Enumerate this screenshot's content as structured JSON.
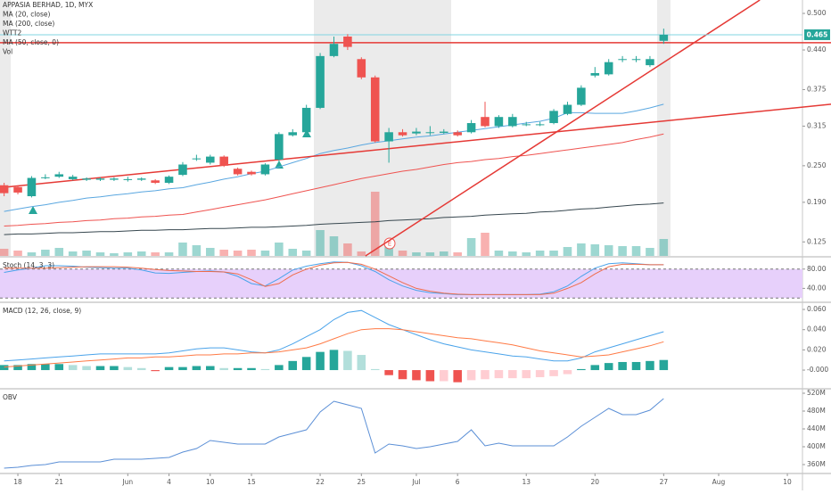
{
  "chart_data": [
    {
      "type": "candlestick",
      "title": "APPASIA BERHAD, 1D, MYX",
      "indicator_label": "WTT2",
      "event_label": "E",
      "xlim": [
        -0.3,
        58.1
      ],
      "ylim": [
        0.102,
        0.522
      ],
      "yticks": [
        {
          "value": 0.5,
          "label": "0.500"
        },
        {
          "value": 0.44,
          "label": "0.440"
        },
        {
          "value": 0.375,
          "label": "0.375"
        },
        {
          "value": 0.315,
          "label": "0.315"
        },
        {
          "value": 0.25,
          "label": "0.250"
        },
        {
          "value": 0.19,
          "label": "0.190"
        },
        {
          "value": 0.125,
          "label": "0.125"
        }
      ],
      "up_color": "#26a69a",
      "down_color": "#ef5350",
      "open": [
        0.218,
        0.215,
        0.2,
        0.23,
        0.232,
        0.228,
        0.227,
        0.227,
        0.227,
        0.228,
        0.227,
        0.226,
        0.222,
        0.235,
        0.262,
        0.255,
        0.265,
        0.245,
        0.24,
        0.236,
        0.26,
        0.3,
        0.305,
        0.345,
        0.43,
        0.462,
        0.425,
        0.395,
        0.29,
        0.305,
        0.303,
        0.305,
        0.304,
        0.305,
        0.305,
        0.33,
        0.315,
        0.315,
        0.318,
        0.318,
        0.32,
        0.335,
        0.35,
        0.398,
        0.4,
        0.425,
        0.425,
        0.415,
        0.455
      ],
      "high": [
        0.222,
        0.218,
        0.233,
        0.236,
        0.24,
        0.235,
        0.231,
        0.231,
        0.231,
        0.232,
        0.231,
        0.228,
        0.234,
        0.256,
        0.268,
        0.268,
        0.267,
        0.247,
        0.242,
        0.254,
        0.305,
        0.31,
        0.35,
        0.435,
        0.462,
        0.466,
        0.428,
        0.398,
        0.312,
        0.31,
        0.312,
        0.315,
        0.31,
        0.308,
        0.325,
        0.355,
        0.333,
        0.335,
        0.322,
        0.322,
        0.343,
        0.355,
        0.382,
        0.412,
        0.425,
        0.43,
        0.43,
        0.43,
        0.475
      ],
      "low": [
        0.2,
        0.203,
        0.198,
        0.228,
        0.23,
        0.226,
        0.225,
        0.225,
        0.225,
        0.224,
        0.225,
        0.22,
        0.22,
        0.233,
        0.258,
        0.252,
        0.248,
        0.234,
        0.234,
        0.234,
        0.258,
        0.298,
        0.303,
        0.343,
        0.428,
        0.44,
        0.392,
        0.288,
        0.255,
        0.298,
        0.3,
        0.3,
        0.302,
        0.298,
        0.303,
        0.313,
        0.312,
        0.313,
        0.315,
        0.315,
        0.318,
        0.333,
        0.348,
        0.395,
        0.398,
        0.42,
        0.42,
        0.412,
        0.45
      ],
      "close": [
        0.205,
        0.206,
        0.23,
        0.231,
        0.236,
        0.232,
        0.229,
        0.229,
        0.229,
        0.228,
        0.229,
        0.222,
        0.232,
        0.252,
        0.262,
        0.265,
        0.25,
        0.236,
        0.236,
        0.252,
        0.302,
        0.305,
        0.345,
        0.43,
        0.45,
        0.445,
        0.395,
        0.29,
        0.305,
        0.3,
        0.306,
        0.305,
        0.306,
        0.3,
        0.32,
        0.315,
        0.33,
        0.33,
        0.318,
        0.318,
        0.34,
        0.35,
        0.378,
        0.402,
        0.42,
        0.425,
        0.425,
        0.425,
        0.465
      ],
      "last_price_label": "0.465",
      "last_price_color": "#26a69a",
      "last_line_color": "#80d4e0",
      "volume": {
        "name": "Vol",
        "values": [
          4000000,
          3000000,
          2000000,
          3500000,
          4500000,
          2500000,
          3000000,
          2000000,
          1500000,
          2000000,
          2500000,
          2000000,
          2000000,
          7500000,
          6000000,
          4500000,
          3500000,
          3000000,
          3500000,
          3000000,
          7500000,
          4000000,
          3000000,
          14500000,
          11000000,
          7000000,
          2500000,
          36000000,
          7500000,
          3000000,
          2000000,
          2000000,
          2500000,
          2000000,
          10000000,
          13000000,
          3000000,
          2500000,
          2000000,
          3000000,
          3000000,
          5000000,
          7000000,
          6500000,
          6000000,
          5500000,
          5500000,
          4500000,
          9500000
        ]
      },
      "series": [
        {
          "name": "MA (20, close)",
          "color": "#5aa7e0",
          "values": [
            0.175,
            0.179,
            0.183,
            0.186,
            0.19,
            0.193,
            0.197,
            0.199,
            0.202,
            0.204,
            0.207,
            0.209,
            0.212,
            0.214,
            0.219,
            0.223,
            0.228,
            0.232,
            0.237,
            0.241,
            0.248,
            0.255,
            0.262,
            0.27,
            0.275,
            0.279,
            0.284,
            0.288,
            0.291,
            0.294,
            0.297,
            0.299,
            0.302,
            0.305,
            0.308,
            0.311,
            0.314,
            0.317,
            0.32,
            0.323,
            0.328,
            0.337,
            0.337,
            0.336,
            0.336,
            0.336,
            0.34,
            0.345,
            0.351
          ]
        },
        {
          "name": "MA (200, close)",
          "color": "#37474f",
          "values": [
            0.137,
            0.138,
            0.138,
            0.139,
            0.14,
            0.14,
            0.141,
            0.142,
            0.142,
            0.143,
            0.144,
            0.144,
            0.145,
            0.145,
            0.146,
            0.147,
            0.147,
            0.148,
            0.149,
            0.149,
            0.15,
            0.151,
            0.152,
            0.154,
            0.155,
            0.156,
            0.157,
            0.158,
            0.16,
            0.161,
            0.162,
            0.163,
            0.165,
            0.166,
            0.167,
            0.169,
            0.17,
            0.171,
            0.172,
            0.174,
            0.175,
            0.177,
            0.179,
            0.18,
            0.182,
            0.184,
            0.186,
            0.187,
            0.189
          ]
        },
        {
          "name": "MA (50, close, 0)",
          "color": "#ef5350",
          "values": [
            0.151,
            0.152,
            0.154,
            0.155,
            0.157,
            0.158,
            0.16,
            0.161,
            0.163,
            0.164,
            0.166,
            0.167,
            0.169,
            0.17,
            0.174,
            0.178,
            0.182,
            0.186,
            0.19,
            0.194,
            0.199,
            0.204,
            0.209,
            0.214,
            0.219,
            0.224,
            0.229,
            0.233,
            0.237,
            0.241,
            0.244,
            0.248,
            0.252,
            0.255,
            0.257,
            0.26,
            0.262,
            0.265,
            0.267,
            0.27,
            0.273,
            0.276,
            0.279,
            0.282,
            0.285,
            0.288,
            0.293,
            0.297,
            0.302
          ]
        }
      ],
      "hline": 0.452,
      "annotation_color": "#e53935",
      "trendlines": [
        {
          "x": [
            26.3,
            55
          ],
          "y": [
            0.102,
            0.522
          ]
        },
        {
          "x": [
            -0.3,
            60.2
          ],
          "y": [
            0.214,
            0.351
          ]
        }
      ]
    },
    {
      "type": "line",
      "title": "Stoch (14, 3, 3)",
      "xlim": [
        -0.3,
        58.1
      ],
      "ylim": [
        13,
        103.6
      ],
      "yticks": [
        {
          "value": 80,
          "label": "80.00"
        },
        {
          "value": 40,
          "label": "40.00"
        }
      ],
      "band": [
        20,
        80
      ],
      "band_color": "#e7d0fb",
      "series": [
        {
          "color": "#4aa3ea",
          "values": [
            73,
            78,
            82,
            87,
            87,
            86,
            84,
            83,
            82,
            82,
            78,
            72,
            71,
            73,
            75,
            76,
            74,
            65,
            50,
            45,
            60,
            78,
            86,
            91,
            95,
            94,
            87,
            75,
            58,
            45,
            36,
            31,
            29,
            27,
            27,
            27,
            27,
            27,
            27,
            28,
            33,
            45,
            65,
            82,
            91,
            93,
            91,
            89,
            89
          ]
        },
        {
          "color": "#ef6c4b",
          "values": [
            82,
            82,
            82,
            82,
            83,
            84,
            85,
            85,
            85,
            84,
            82,
            79,
            77,
            76,
            75,
            75,
            74,
            70,
            58,
            44,
            50,
            68,
            80,
            88,
            93,
            94,
            90,
            80,
            66,
            52,
            40,
            34,
            30,
            28,
            27,
            27,
            27,
            27,
            27,
            27,
            30,
            40,
            52,
            70,
            85,
            90,
            90,
            89,
            89
          ]
        }
      ]
    },
    {
      "type": "macd",
      "title": "MACD (12, 26, close, 9)",
      "xlim": [
        -0.3,
        58.1
      ],
      "ylim": [
        -0.0176,
        0.0662
      ],
      "yticks": [
        {
          "value": 0.06,
          "label": "0.060"
        },
        {
          "value": 0.04,
          "label": "0.040"
        },
        {
          "value": 0.02,
          "label": "0.020"
        },
        {
          "value": 0,
          "label": "-0.000"
        }
      ],
      "histogram": [
        0.005,
        0.005,
        0.006,
        0.006,
        0.006,
        0.005,
        0.004,
        0.004,
        0.004,
        0.003,
        0.002,
        -0.001,
        0.003,
        0.003,
        0.004,
        0.004,
        0.002,
        0.002,
        0.002,
        0.001,
        0.005,
        0.009,
        0.013,
        0.018,
        0.02,
        0.019,
        0.015,
        0.001,
        -0.005,
        -0.009,
        -0.01,
        -0.011,
        -0.011,
        -0.012,
        -0.01,
        -0.009,
        -0.008,
        -0.008,
        -0.008,
        -0.007,
        -0.006,
        -0.004,
        0.001,
        0.005,
        0.007,
        0.008,
        0.008,
        0.009,
        0.01
      ],
      "histogram_colors": [
        "#26a69a",
        "#b2dfdb",
        "#ffcdd2",
        "#ef5350"
      ],
      "series": [
        {
          "color": "#4aa3ea",
          "values": [
            0.009,
            0.01,
            0.011,
            0.012,
            0.013,
            0.014,
            0.015,
            0.016,
            0.016,
            0.016,
            0.016,
            0.016,
            0.017,
            0.019,
            0.021,
            0.022,
            0.022,
            0.02,
            0.018,
            0.017,
            0.02,
            0.026,
            0.033,
            0.04,
            0.05,
            0.057,
            0.059,
            0.052,
            0.045,
            0.04,
            0.035,
            0.03,
            0.026,
            0.023,
            0.02,
            0.018,
            0.016,
            0.014,
            0.013,
            0.011,
            0.009,
            0.009,
            0.012,
            0.018,
            0.022,
            0.026,
            0.03,
            0.034,
            0.038
          ]
        },
        {
          "color": "#ff7a45",
          "values": [
            0.003,
            0.004,
            0.005,
            0.006,
            0.007,
            0.008,
            0.009,
            0.01,
            0.011,
            0.012,
            0.012,
            0.013,
            0.013,
            0.014,
            0.015,
            0.015,
            0.016,
            0.016,
            0.017,
            0.017,
            0.018,
            0.02,
            0.022,
            0.026,
            0.031,
            0.036,
            0.04,
            0.041,
            0.041,
            0.04,
            0.038,
            0.036,
            0.034,
            0.032,
            0.031,
            0.029,
            0.027,
            0.025,
            0.022,
            0.019,
            0.017,
            0.015,
            0.013,
            0.014,
            0.015,
            0.018,
            0.021,
            0.024,
            0.028
          ]
        }
      ]
    },
    {
      "type": "line",
      "title": "OBV",
      "xlim": [
        -0.3,
        58.1
      ],
      "ylim": [
        342000000,
        528000000
      ],
      "yticks": [
        {
          "value": 520000000,
          "label": "520M"
        },
        {
          "value": 480000000,
          "label": "480M"
        },
        {
          "value": 440000000,
          "label": "440M"
        },
        {
          "value": 400000000,
          "label": "400M"
        },
        {
          "value": 360000000,
          "label": "360M"
        }
      ],
      "xticks": [
        {
          "value": 1,
          "label": "18"
        },
        {
          "value": 4,
          "label": "21"
        },
        {
          "value": 9,
          "label": "Jun"
        },
        {
          "value": 12,
          "label": "4"
        },
        {
          "value": 15,
          "label": "10"
        },
        {
          "value": 18,
          "label": "15"
        },
        {
          "value": 23,
          "label": "22"
        },
        {
          "value": 26,
          "label": "25"
        },
        {
          "value": 30,
          "label": "Jul"
        },
        {
          "value": 33,
          "label": "6"
        },
        {
          "value": 38,
          "label": "13"
        },
        {
          "value": 43,
          "label": "20"
        },
        {
          "value": 48,
          "label": "27"
        },
        {
          "value": 52,
          "label": "Aug"
        },
        {
          "value": 57,
          "label": "10"
        }
      ],
      "series": [
        {
          "color": "#5b8fd6",
          "values": [
            352000000,
            354000000,
            358000000,
            360000000,
            366000000,
            366000000,
            366000000,
            366000000,
            372000000,
            372000000,
            372000000,
            374000000,
            376000000,
            388000000,
            396000000,
            414000000,
            410000000,
            406000000,
            406000000,
            406000000,
            422000000,
            430000000,
            438000000,
            478000000,
            502000000,
            494000000,
            486000000,
            386000000,
            406000000,
            402000000,
            396000000,
            400000000,
            406000000,
            412000000,
            438000000,
            402000000,
            408000000,
            402000000,
            402000000,
            402000000,
            402000000,
            422000000,
            446000000,
            466000000,
            486000000,
            472000000,
            472000000,
            482000000,
            508000000
          ]
        }
      ]
    }
  ]
}
